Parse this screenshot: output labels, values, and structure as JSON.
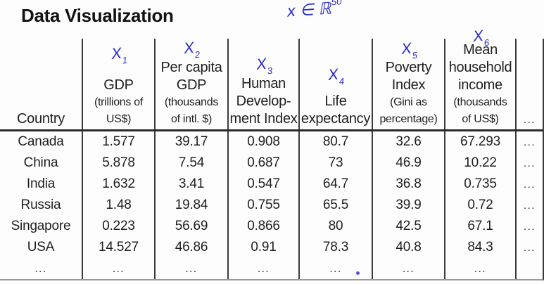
{
  "page": {
    "title": "Data Visualization"
  },
  "ink": {
    "color": "#2c2cc9",
    "vector_note": {
      "base": "x ∈ ℝ",
      "sup": "50"
    },
    "column_marks": [
      {
        "base": "X",
        "sub": "1"
      },
      {
        "base": "X",
        "sub": "2"
      },
      {
        "base": "X",
        "sub": "3"
      },
      {
        "base": "X",
        "sub": "4"
      },
      {
        "base": "X",
        "sub": "5"
      },
      {
        "base": "X",
        "sub": "6"
      }
    ]
  },
  "table": {
    "columns": [
      {
        "lines": [
          "Country"
        ]
      },
      {
        "lines": [
          "GDP",
          "(trillions of",
          "US$)"
        ]
      },
      {
        "lines": [
          "Per capita",
          "GDP",
          "(thousands",
          "of intl. $)"
        ]
      },
      {
        "lines": [
          "Human",
          "Develop-",
          "ment Index"
        ]
      },
      {
        "lines": [
          "Life",
          "expectancy"
        ]
      },
      {
        "lines": [
          "Poverty",
          "Index",
          "(Gini as",
          "percentage)"
        ]
      },
      {
        "lines": [
          "Mean",
          "household",
          "income",
          "(thousands",
          "of US$)"
        ]
      },
      {
        "lines": [
          "..."
        ]
      }
    ],
    "rows": [
      [
        "Canada",
        "1.577",
        "39.17",
        "0.908",
        "80.7",
        "32.6",
        "67.293",
        "..."
      ],
      [
        "China",
        "5.878",
        "7.54",
        "0.687",
        "73",
        "46.9",
        "10.22",
        "..."
      ],
      [
        "India",
        "1.632",
        "3.41",
        "0.547",
        "64.7",
        "36.8",
        "0.735",
        "..."
      ],
      [
        "Russia",
        "1.48",
        "19.84",
        "0.755",
        "65.5",
        "39.9",
        "0.72",
        "..."
      ],
      [
        "Singapore",
        "0.223",
        "56.69",
        "0.866",
        "80",
        "42.5",
        "67.1",
        "..."
      ],
      [
        "USA",
        "14.527",
        "46.86",
        "0.91",
        "78.3",
        "40.8",
        "84.3",
        "..."
      ],
      [
        "...",
        "...",
        "...",
        "...",
        "...",
        "...",
        "...",
        ""
      ]
    ]
  }
}
